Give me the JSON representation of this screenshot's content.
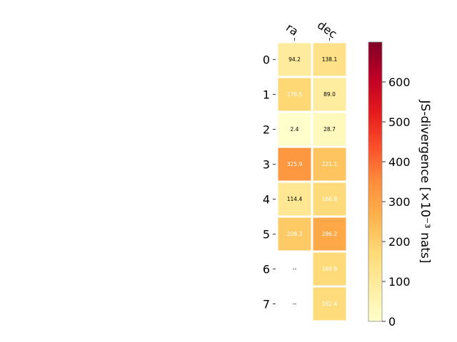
{
  "chart_data": {
    "type": "heatmap",
    "columns": [
      "ra",
      "dec"
    ],
    "rows": [
      "0",
      "1",
      "2",
      "3",
      "4",
      "5",
      "6",
      "7"
    ],
    "values": [
      [
        94.2,
        138.1
      ],
      [
        176.5,
        89.0
      ],
      [
        2.4,
        28.7
      ],
      [
        325.9,
        221.1
      ],
      [
        114.4,
        166.8
      ],
      [
        208.3,
        286.2
      ],
      [
        null,
        169.8
      ],
      [
        null,
        162.4
      ]
    ],
    "cell_labels": [
      [
        "94.2",
        "138.1"
      ],
      [
        "176.5",
        "89.0"
      ],
      [
        "2.4",
        "28.7"
      ],
      [
        "325.9",
        "221.1"
      ],
      [
        "114.4",
        "166.8"
      ],
      [
        "208.3",
        "286.2"
      ],
      [
        "--",
        "169.8"
      ],
      [
        "--",
        "162.4"
      ]
    ],
    "colorbar": {
      "label": "JS-divergence [×10⁻³ nats]",
      "range": [
        0,
        700
      ],
      "ticks": [
        0,
        100,
        200,
        300,
        400,
        500,
        600
      ],
      "colormap": "YlOrRd"
    }
  }
}
